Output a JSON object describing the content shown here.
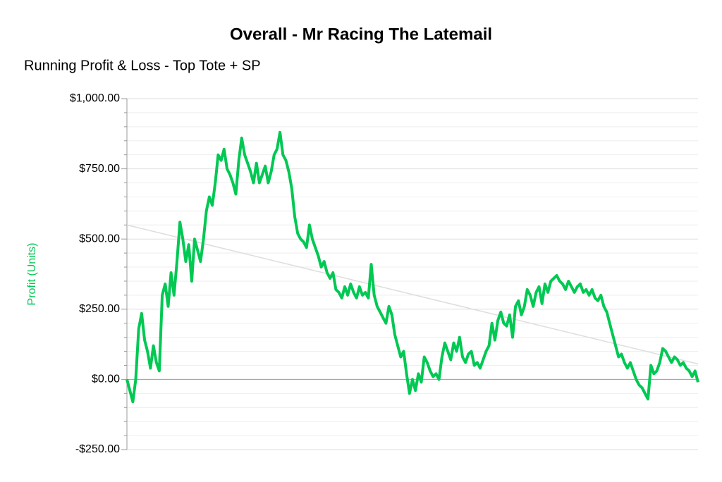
{
  "chart_data": {
    "type": "line",
    "title": "Overall - Mr Racing The Latemail",
    "subtitle": "Running Profit & Loss - Top Tote + SP",
    "y_label": "Profit (Units)",
    "ylim": [
      -250,
      1000
    ],
    "yticks": [
      {
        "value": -250,
        "label": "-$250.00"
      },
      {
        "value": 0,
        "label": "$0.00"
      },
      {
        "value": 250,
        "label": "$250.00"
      },
      {
        "value": 500,
        "label": "$500.00"
      },
      {
        "value": 750,
        "label": "$750.00"
      },
      {
        "value": 1000,
        "label": "$1,000.00"
      }
    ],
    "minor_yticks": [
      -200,
      -150,
      -100,
      -50,
      50,
      100,
      150,
      200,
      300,
      350,
      400,
      450,
      550,
      600,
      650,
      700,
      800,
      850,
      900,
      950
    ],
    "grid": true,
    "series": [
      {
        "color": "#00c853",
        "values": [
          0,
          -40,
          -80,
          0,
          180,
          235,
          140,
          100,
          40,
          120,
          60,
          30,
          300,
          340,
          260,
          380,
          300,
          420,
          560,
          500,
          420,
          480,
          350,
          500,
          460,
          420,
          500,
          600,
          650,
          620,
          700,
          800,
          780,
          820,
          750,
          730,
          700,
          660,
          780,
          860,
          800,
          770,
          740,
          700,
          770,
          700,
          730,
          760,
          700,
          740,
          800,
          820,
          880,
          800,
          780,
          740,
          680,
          580,
          520,
          500,
          490,
          470,
          550,
          500,
          470,
          440,
          400,
          420,
          380,
          360,
          380,
          320,
          310,
          290,
          330,
          300,
          340,
          310,
          290,
          330,
          300,
          310,
          290,
          410,
          300,
          260,
          240,
          220,
          200,
          260,
          230,
          160,
          120,
          80,
          100,
          20,
          -50,
          0,
          -40,
          20,
          -10,
          80,
          60,
          30,
          10,
          20,
          0,
          80,
          130,
          100,
          70,
          130,
          100,
          150,
          80,
          60,
          90,
          100,
          50,
          60,
          40,
          70,
          100,
          120,
          200,
          140,
          210,
          240,
          200,
          190,
          230,
          150,
          260,
          280,
          230,
          260,
          320,
          300,
          260,
          310,
          330,
          270,
          340,
          310,
          350,
          360,
          370,
          350,
          340,
          320,
          350,
          330,
          310,
          330,
          340,
          310,
          320,
          300,
          320,
          290,
          280,
          300,
          260,
          240,
          200,
          160,
          120,
          80,
          90,
          60,
          40,
          60,
          30,
          0,
          -20,
          -30,
          -50,
          -70,
          50,
          20,
          30,
          60,
          110,
          100,
          80,
          60,
          80,
          70,
          50,
          60,
          40,
          30,
          10,
          30,
          -10
        ]
      }
    ],
    "trend_line": {
      "start": 550,
      "end": 55,
      "color": "#dddddd"
    }
  }
}
